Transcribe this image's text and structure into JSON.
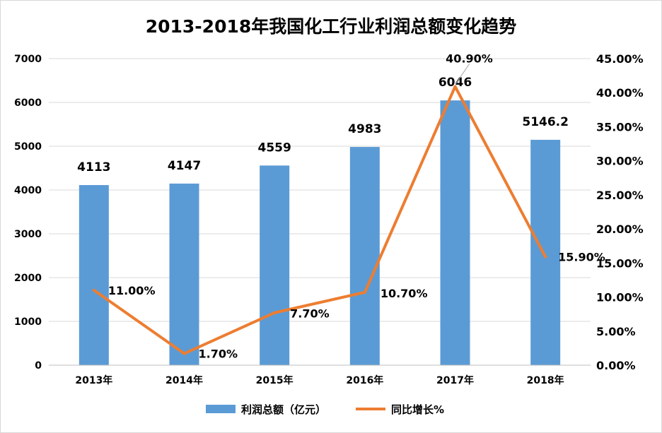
{
  "chart_data": {
    "type": "bar+line",
    "title": "2013-2018年我国化工行业利润总额变化趋势",
    "categories": [
      "2013年",
      "2014年",
      "2015年",
      "2016年",
      "2017年",
      "2018年"
    ],
    "series": [
      {
        "name": "利润总额（亿元）",
        "type": "bar",
        "axis": "left",
        "color": "#5b9bd5",
        "values": [
          4113,
          4147,
          4559,
          4983,
          6046,
          5146.2
        ],
        "labels": [
          "4113",
          "4147",
          "4559",
          "4983",
          "6046",
          "5146.2"
        ]
      },
      {
        "name": "同比增长%",
        "type": "line",
        "axis": "right",
        "color": "#ed7d31",
        "values": [
          11.0,
          1.7,
          7.7,
          10.7,
          40.9,
          15.9
        ],
        "labels": [
          "11.00%",
          "1.70%",
          "7.70%",
          "10.70%",
          "40.90%",
          "15.90%"
        ]
      }
    ],
    "y_left": {
      "min": 0,
      "max": 7000,
      "ticks": [
        0,
        1000,
        2000,
        3000,
        4000,
        5000,
        6000,
        7000
      ],
      "tick_labels": [
        "0",
        "1000",
        "2000",
        "3000",
        "4000",
        "5000",
        "6000",
        "7000"
      ]
    },
    "y_right": {
      "min": 0,
      "max": 45,
      "ticks": [
        0,
        5,
        10,
        15,
        20,
        25,
        30,
        35,
        40,
        45
      ],
      "tick_labels": [
        "0.00%",
        "5.00%",
        "10.00%",
        "15.00%",
        "20.00%",
        "25.00%",
        "30.00%",
        "35.00%",
        "40.00%",
        "45.00%"
      ]
    },
    "grid": true,
    "legend_position": "bottom"
  }
}
